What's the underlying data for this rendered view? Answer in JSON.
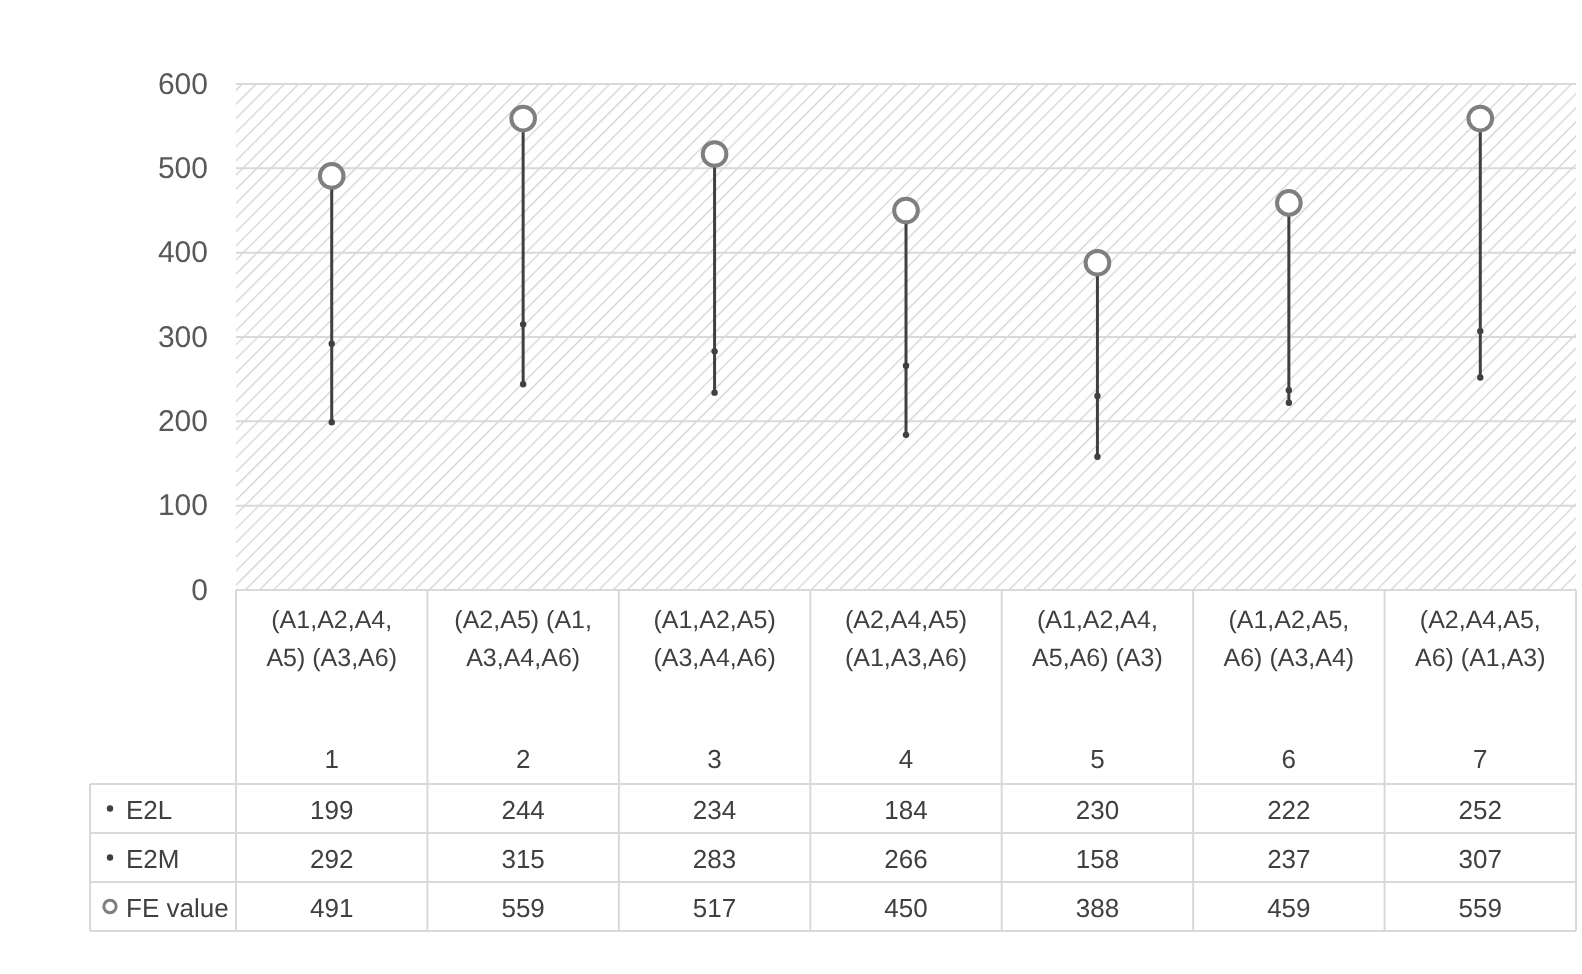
{
  "chart_data": {
    "type": "scatter",
    "categories": [
      "(A1,A2,A4,A5) (A3,A6)",
      "(A2,A5) (A1,A3,A4,A6)",
      "(A1,A2,A5) (A3,A4,A6)",
      "(A2,A4,A5) (A1,A3,A6)",
      "(A1,A2,A4,A5,A6) (A3)",
      "(A1,A2,A5,A6) (A3,A4)",
      "(A2,A4,A5,A6) (A1,A3)"
    ],
    "series": [
      {
        "name": "E2L",
        "color": "#404040",
        "values": [
          199,
          244,
          234,
          184,
          230,
          222,
          252
        ]
      },
      {
        "name": "E2M",
        "color": "#404040",
        "values": [
          292,
          315,
          283,
          266,
          158,
          237,
          307
        ]
      },
      {
        "name": "FE value",
        "color": "#7f7f7f",
        "marker": "circle",
        "values": [
          491,
          559,
          517,
          450,
          388,
          459,
          559
        ]
      }
    ],
    "ylim": [
      0,
      600
    ],
    "yticks": [
      0,
      100,
      200,
      300,
      400,
      500,
      600
    ],
    "grid": "y",
    "data_labels": true,
    "legend": "bottom left",
    "annotations": [
      "1",
      "2",
      "3",
      "4",
      "5",
      "6",
      "7"
    ]
  }
}
